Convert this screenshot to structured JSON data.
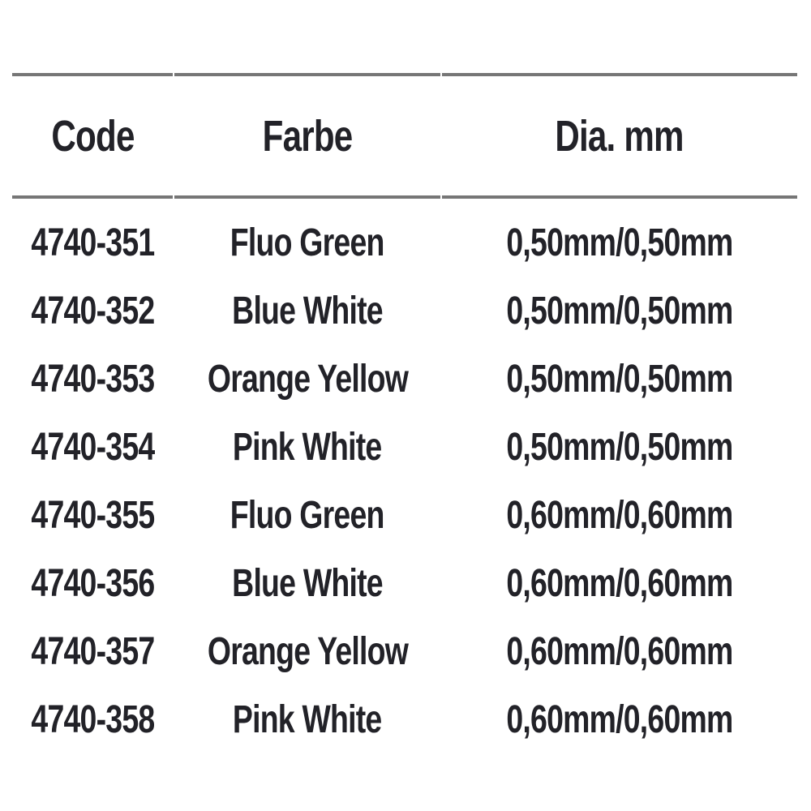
{
  "table": {
    "headers": {
      "code": "Code",
      "farbe": "Farbe",
      "dia": "Dia. mm"
    },
    "rows": [
      {
        "code": "4740-351",
        "farbe": "Fluo Green",
        "dia": "0,50mm/0,50mm"
      },
      {
        "code": "4740-352",
        "farbe": "Blue White",
        "dia": "0,50mm/0,50mm"
      },
      {
        "code": "4740-353",
        "farbe": "Orange Yellow",
        "dia": "0,50mm/0,50mm"
      },
      {
        "code": "4740-354",
        "farbe": "Pink White",
        "dia": "0,50mm/0,50mm"
      },
      {
        "code": "4740-355",
        "farbe": "Fluo Green",
        "dia": "0,60mm/0,60mm"
      },
      {
        "code": "4740-356",
        "farbe": "Blue White",
        "dia": "0,60mm/0,60mm"
      },
      {
        "code": "4740-357",
        "farbe": "Orange Yellow",
        "dia": "0,60mm/0,60mm"
      },
      {
        "code": "4740-358",
        "farbe": "Pink White",
        "dia": "0,60mm/0,60mm"
      }
    ]
  },
  "colors": {
    "text": "#222228",
    "rule": "#767676",
    "background": "#ffffff"
  }
}
